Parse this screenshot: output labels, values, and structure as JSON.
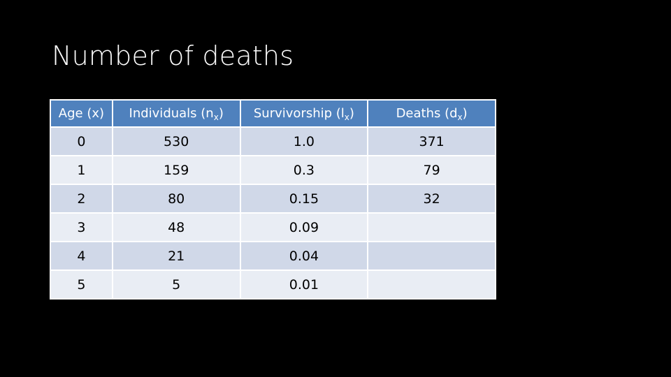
{
  "slide": {
    "title": "Number of deaths"
  },
  "table": {
    "headers": [
      {
        "text": "Age (x)",
        "sub": "",
        "suffix": ""
      },
      {
        "text": "Individuals (n",
        "sub": "x",
        "suffix": ")"
      },
      {
        "text": "Survivorship (l",
        "sub": "x",
        "suffix": ")"
      },
      {
        "text": "Deaths (d",
        "sub": "x",
        "suffix": ")"
      }
    ],
    "rows": [
      [
        "0",
        "530",
        "1.0",
        "371"
      ],
      [
        "1",
        "159",
        "0.3",
        "79"
      ],
      [
        "2",
        "80",
        "0.15",
        "32"
      ],
      [
        "3",
        "48",
        "0.09",
        ""
      ],
      [
        "4",
        "21",
        "0.04",
        ""
      ],
      [
        "5",
        "5",
        "0.01",
        ""
      ]
    ]
  },
  "colors": {
    "background": "#000000",
    "header_fill": "#4f81bd",
    "row_band_dark": "#d0d8e8",
    "row_band_light": "#e9edf4"
  }
}
